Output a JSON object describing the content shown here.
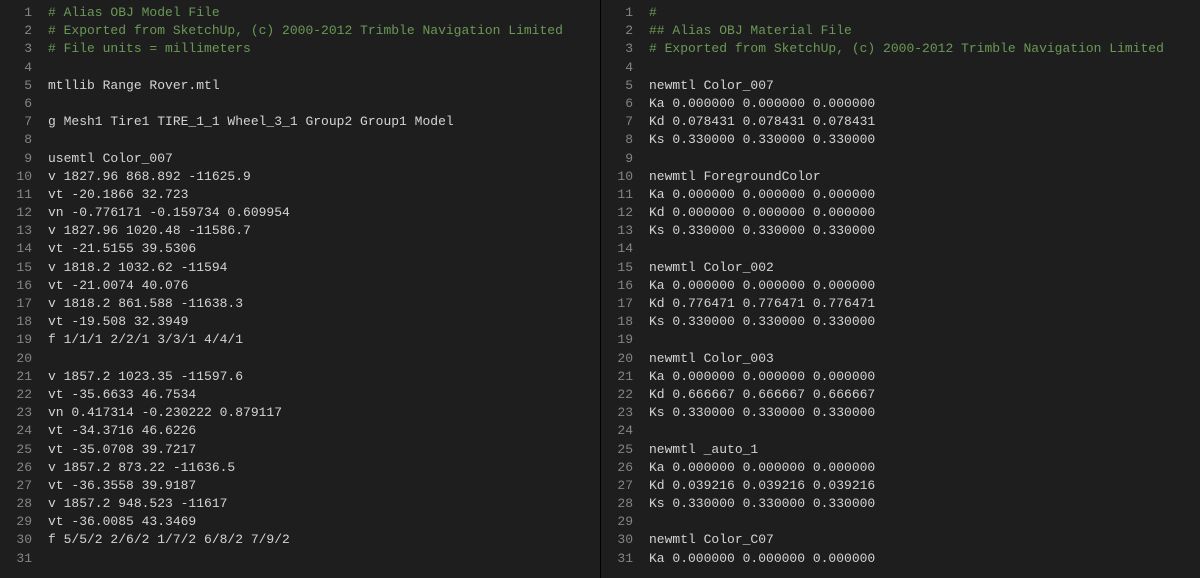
{
  "colors": {
    "background": "#1e1e1e",
    "text": "#d4d4d4",
    "lineNumber": "#858585",
    "comment": "#6a9955"
  },
  "typography": {
    "fontFamily": "Consolas, Courier New, monospace",
    "fontSize": 13,
    "lineHeight": 18.2
  },
  "leftPane": {
    "lines": [
      {
        "n": 1,
        "t": "# Alias OBJ Model File",
        "comment": true
      },
      {
        "n": 2,
        "t": "# Exported from SketchUp, (c) 2000-2012 Trimble Navigation Limited",
        "comment": true
      },
      {
        "n": 3,
        "t": "# File units = millimeters",
        "comment": true
      },
      {
        "n": 4,
        "t": ""
      },
      {
        "n": 5,
        "t": "mtllib Range Rover.mtl"
      },
      {
        "n": 6,
        "t": ""
      },
      {
        "n": 7,
        "t": "g Mesh1 Tire1 TIRE_1_1 Wheel_3_1 Group2 Group1 Model"
      },
      {
        "n": 8,
        "t": ""
      },
      {
        "n": 9,
        "t": "usemtl Color_007"
      },
      {
        "n": 10,
        "t": "v 1827.96 868.892 -11625.9"
      },
      {
        "n": 11,
        "t": "vt -20.1866 32.723"
      },
      {
        "n": 12,
        "t": "vn -0.776171 -0.159734 0.609954"
      },
      {
        "n": 13,
        "t": "v 1827.96 1020.48 -11586.7"
      },
      {
        "n": 14,
        "t": "vt -21.5155 39.5306"
      },
      {
        "n": 15,
        "t": "v 1818.2 1032.62 -11594"
      },
      {
        "n": 16,
        "t": "vt -21.0074 40.076"
      },
      {
        "n": 17,
        "t": "v 1818.2 861.588 -11638.3"
      },
      {
        "n": 18,
        "t": "vt -19.508 32.3949"
      },
      {
        "n": 19,
        "t": "f 1/1/1 2/2/1 3/3/1 4/4/1"
      },
      {
        "n": 20,
        "t": ""
      },
      {
        "n": 21,
        "t": "v 1857.2 1023.35 -11597.6"
      },
      {
        "n": 22,
        "t": "vt -35.6633 46.7534"
      },
      {
        "n": 23,
        "t": "vn 0.417314 -0.230222 0.879117"
      },
      {
        "n": 24,
        "t": "vt -34.3716 46.6226"
      },
      {
        "n": 25,
        "t": "vt -35.0708 39.7217"
      },
      {
        "n": 26,
        "t": "v 1857.2 873.22 -11636.5"
      },
      {
        "n": 27,
        "t": "vt -36.3558 39.9187"
      },
      {
        "n": 28,
        "t": "v 1857.2 948.523 -11617"
      },
      {
        "n": 29,
        "t": "vt -36.0085 43.3469"
      },
      {
        "n": 30,
        "t": "f 5/5/2 2/6/2 1/7/2 6/8/2 7/9/2"
      },
      {
        "n": 31,
        "t": ""
      }
    ]
  },
  "rightPane": {
    "lines": [
      {
        "n": 1,
        "t": "#",
        "comment": true
      },
      {
        "n": 2,
        "t": "## Alias OBJ Material File",
        "comment": true
      },
      {
        "n": 3,
        "t": "# Exported from SketchUp, (c) 2000-2012 Trimble Navigation Limited",
        "comment": true
      },
      {
        "n": 4,
        "t": ""
      },
      {
        "n": 5,
        "t": "newmtl Color_007"
      },
      {
        "n": 6,
        "t": "Ka 0.000000 0.000000 0.000000"
      },
      {
        "n": 7,
        "t": "Kd 0.078431 0.078431 0.078431"
      },
      {
        "n": 8,
        "t": "Ks 0.330000 0.330000 0.330000"
      },
      {
        "n": 9,
        "t": ""
      },
      {
        "n": 10,
        "t": "newmtl ForegroundColor"
      },
      {
        "n": 11,
        "t": "Ka 0.000000 0.000000 0.000000"
      },
      {
        "n": 12,
        "t": "Kd 0.000000 0.000000 0.000000"
      },
      {
        "n": 13,
        "t": "Ks 0.330000 0.330000 0.330000"
      },
      {
        "n": 14,
        "t": ""
      },
      {
        "n": 15,
        "t": "newmtl Color_002"
      },
      {
        "n": 16,
        "t": "Ka 0.000000 0.000000 0.000000"
      },
      {
        "n": 17,
        "t": "Kd 0.776471 0.776471 0.776471"
      },
      {
        "n": 18,
        "t": "Ks 0.330000 0.330000 0.330000"
      },
      {
        "n": 19,
        "t": ""
      },
      {
        "n": 20,
        "t": "newmtl Color_003"
      },
      {
        "n": 21,
        "t": "Ka 0.000000 0.000000 0.000000"
      },
      {
        "n": 22,
        "t": "Kd 0.666667 0.666667 0.666667"
      },
      {
        "n": 23,
        "t": "Ks 0.330000 0.330000 0.330000"
      },
      {
        "n": 24,
        "t": ""
      },
      {
        "n": 25,
        "t": "newmtl _auto_1"
      },
      {
        "n": 26,
        "t": "Ka 0.000000 0.000000 0.000000"
      },
      {
        "n": 27,
        "t": "Kd 0.039216 0.039216 0.039216"
      },
      {
        "n": 28,
        "t": "Ks 0.330000 0.330000 0.330000"
      },
      {
        "n": 29,
        "t": ""
      },
      {
        "n": 30,
        "t": "newmtl Color_C07"
      },
      {
        "n": 31,
        "t": "Ka 0.000000 0.000000 0.000000"
      }
    ]
  }
}
